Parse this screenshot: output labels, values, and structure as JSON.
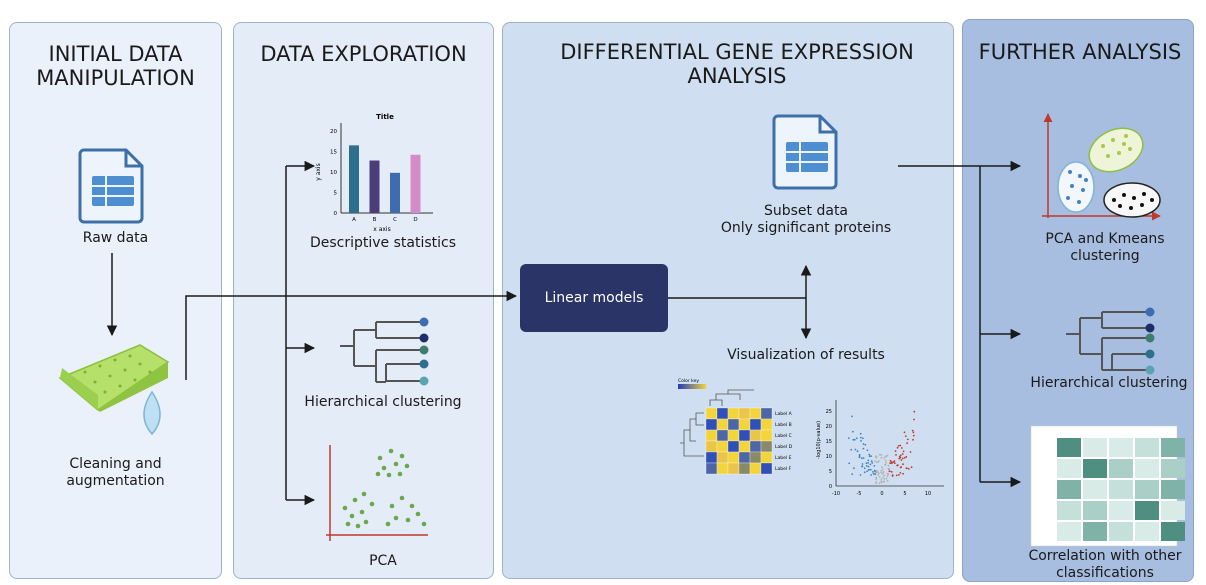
{
  "panels": {
    "initial": {
      "title_line1": "INITIAL DATA",
      "title_line2": "MANIPULATION"
    },
    "exploration": {
      "title": "DATA EXPLORATION"
    },
    "dge": {
      "title_line1": "DIFFERENTIAL GENE EXPRESSION",
      "title_line2": "ANALYSIS"
    },
    "further": {
      "title": "FURTHER ANALYSIS"
    }
  },
  "labels": {
    "raw_data": "Raw data",
    "cleaning_line1": "Cleaning and",
    "cleaning_line2": "augmentation",
    "descriptive_statistics": "Descriptive statistics",
    "hierarchical_clustering_exploration": "Hierarchical clustering",
    "pca": "PCA",
    "linear_models": "Linear models",
    "subset_line1": "Subset data",
    "subset_line2": "Only significant proteins",
    "visualization": "Visualization of results",
    "pca_kmeans_line1": "PCA and Kmeans",
    "pca_kmeans_line2": "clustering",
    "hierarchical_clustering_further": "Hierarchical clustering",
    "correlation_line1": "Correlation with other",
    "correlation_line2": "classifications"
  },
  "mini_bar_chart": {
    "title": "Title",
    "xlabel": "x axis",
    "ylabel": "y axis",
    "categories": [
      "A",
      "B",
      "C",
      "D"
    ],
    "values": [
      16.5,
      12.8,
      9.8,
      14.2
    ],
    "yticks": [
      "0",
      "5",
      "10",
      "15",
      "20"
    ],
    "colors": [
      "#2e6f8e",
      "#4b3d7a",
      "#3f6bb0",
      "#d48bc8"
    ]
  },
  "heatmap": {
    "color_key": "Color key",
    "row_labels": [
      "Label A",
      "Label B",
      "Label C",
      "Label D",
      "Label E",
      "Label F"
    ]
  },
  "volcano": {
    "ylabel": "-log10(p-value)",
    "xticks": [
      "-10",
      "-5",
      "0",
      "5",
      "10"
    ],
    "yticks": [
      "0",
      "5",
      "10",
      "15",
      "20",
      "25"
    ]
  }
}
